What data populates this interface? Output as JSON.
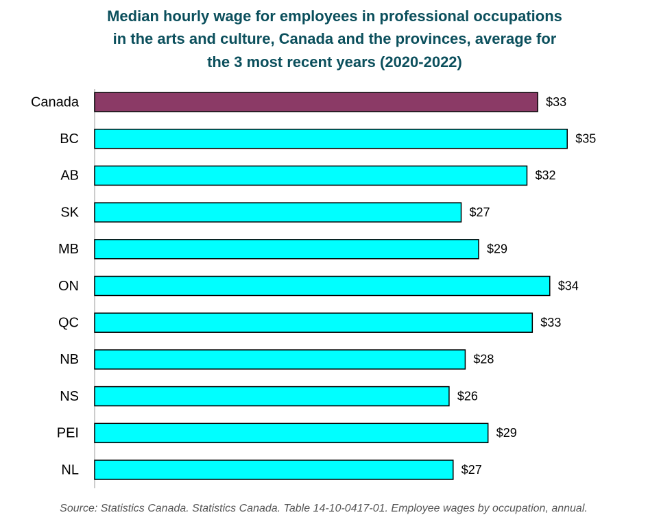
{
  "chart_data": {
    "type": "hbar",
    "title": [
      "Median hourly wage for employees in professional occupations",
      "in the arts and culture, Canada and the provinces, average for",
      "the 3 most recent years (2020-2022)"
    ],
    "categories": [
      "Canada",
      "BC",
      "AB",
      "SK",
      "MB",
      "ON",
      "QC",
      "NB",
      "NS",
      "PEI",
      "NL"
    ],
    "values": [
      33.0,
      35.2,
      32.2,
      27.3,
      28.6,
      33.9,
      32.6,
      27.6,
      26.4,
      29.3,
      26.7
    ],
    "value_labels": [
      "$33",
      "$35",
      "$32",
      "$27",
      "$29",
      "$34",
      "$33",
      "$28",
      "$26",
      "$29",
      "$27"
    ],
    "colors": [
      "#8b3a66",
      "#00ffff",
      "#00ffff",
      "#00ffff",
      "#00ffff",
      "#00ffff",
      "#00ffff",
      "#00ffff",
      "#00ffff",
      "#00ffff",
      "#00ffff"
    ],
    "source": "Source: Statistics Canada. Statistics Canada. Table 14-10-0417-01. Employee wages by occupation, annual."
  }
}
